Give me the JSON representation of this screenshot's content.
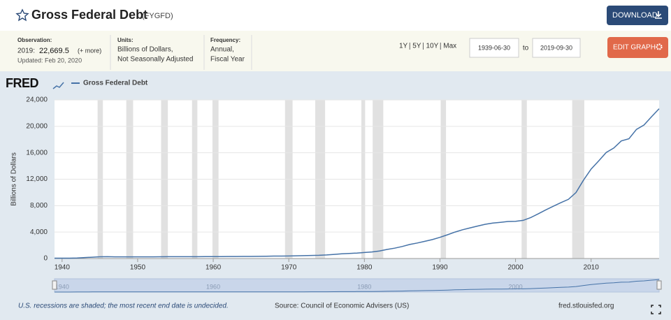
{
  "header": {
    "title": "Gross Federal Debt",
    "code": "(FYGFD)",
    "download": "DOWNLOAD",
    "observation_label": "Observation:",
    "observation_date": "2019:",
    "observation_value": "22,669.5",
    "more": "(+ more)",
    "updated": "Updated: Feb 20, 2020",
    "units_label": "Units:",
    "units_1": "Billions of Dollars,",
    "units_2": "Not Seasonally Adjusted",
    "frequency_label": "Frequency:",
    "frequency_1": "Annual,",
    "frequency_2": "Fiscal Year",
    "ranges": [
      "1Y",
      "5Y",
      "10Y",
      "Max"
    ],
    "start_date": "1939-06-30",
    "to": "to",
    "end_date": "2019-09-30",
    "edit": "EDIT GRAPH"
  },
  "chart_data": {
    "type": "line",
    "logo": "FRED",
    "x": [
      1939,
      1940,
      1941,
      1942,
      1943,
      1944,
      1945,
      1946,
      1947,
      1948,
      1949,
      1950,
      1951,
      1952,
      1953,
      1954,
      1955,
      1956,
      1957,
      1958,
      1959,
      1960,
      1961,
      1962,
      1963,
      1964,
      1965,
      1966,
      1967,
      1968,
      1969,
      1970,
      1971,
      1972,
      1973,
      1974,
      1975,
      1976,
      1977,
      1978,
      1979,
      1980,
      1981,
      1982,
      1983,
      1984,
      1985,
      1986,
      1987,
      1988,
      1989,
      1990,
      1991,
      1992,
      1993,
      1994,
      1995,
      1996,
      1997,
      1998,
      1999,
      2000,
      2001,
      2002,
      2003,
      2004,
      2005,
      2006,
      2007,
      2008,
      2009,
      2010,
      2011,
      2012,
      2013,
      2014,
      2015,
      2016,
      2017,
      2018,
      2019
    ],
    "series": [
      {
        "name": "Gross Federal Debt",
        "color": "#4572a7",
        "values": [
          48,
          51,
          58,
          79,
          143,
          204,
          260,
          271,
          257,
          252,
          253,
          257,
          255,
          259,
          266,
          271,
          274,
          273,
          272,
          280,
          287,
          291,
          293,
          303,
          310,
          316,
          322,
          328,
          340,
          369,
          366,
          381,
          408,
          436,
          466,
          484,
          542,
          629,
          706,
          777,
          829,
          909,
          995,
          1137,
          1372,
          1565,
          1817,
          2121,
          2346,
          2601,
          2868,
          3206,
          3598,
          4002,
          4351,
          4643,
          4921,
          5181,
          5369,
          5478,
          5606,
          5629,
          5770,
          6198,
          6760,
          7355,
          7905,
          8451,
          8951,
          9986,
          11876,
          13529,
          14764,
          16051,
          16719,
          17794,
          18120,
          19539,
          20206,
          21462,
          22669.5
        ]
      }
    ],
    "xlim": [
      1939,
      2019
    ],
    "xticks": [
      1940,
      1950,
      1960,
      1970,
      1980,
      1990,
      2000,
      2010
    ],
    "ylim": [
      0,
      24000
    ],
    "yticks": [
      0,
      {
        "value": 4000,
        "label": "4,000"
      },
      {
        "value": 8000,
        "label": "8,000"
      },
      {
        "value": 12000,
        "label": "12,000"
      },
      {
        "value": 16000,
        "label": "16,000"
      },
      {
        "value": 20000,
        "label": "20,000"
      },
      {
        "value": 24000,
        "label": "24,000"
      }
    ],
    "y_label": "Billions of Dollars",
    "grid": true,
    "recessions": [
      [
        1944.7,
        1945.4
      ],
      [
        1948.5,
        1949.4
      ],
      [
        1953.1,
        1954.0
      ],
      [
        1957.2,
        1957.9
      ],
      [
        1959.9,
        1960.7
      ],
      [
        1969.5,
        1970.5
      ],
      [
        1973.5,
        1974.8
      ],
      [
        1979.6,
        1980.1
      ],
      [
        1981.1,
        1982.5
      ],
      [
        1990.1,
        1990.8
      ],
      [
        2000.8,
        2001.5
      ],
      [
        2007.5,
        2009.1
      ]
    ],
    "recession_color": "#e1e1e1",
    "navigator_xticks": [
      1940,
      1960,
      1980,
      2000
    ],
    "note": "U.S. recessions are shaded; the most recent end date is undecided.",
    "source": "Source: Council of Economic Advisers (US)",
    "site": "fred.stlouisfed.org"
  }
}
